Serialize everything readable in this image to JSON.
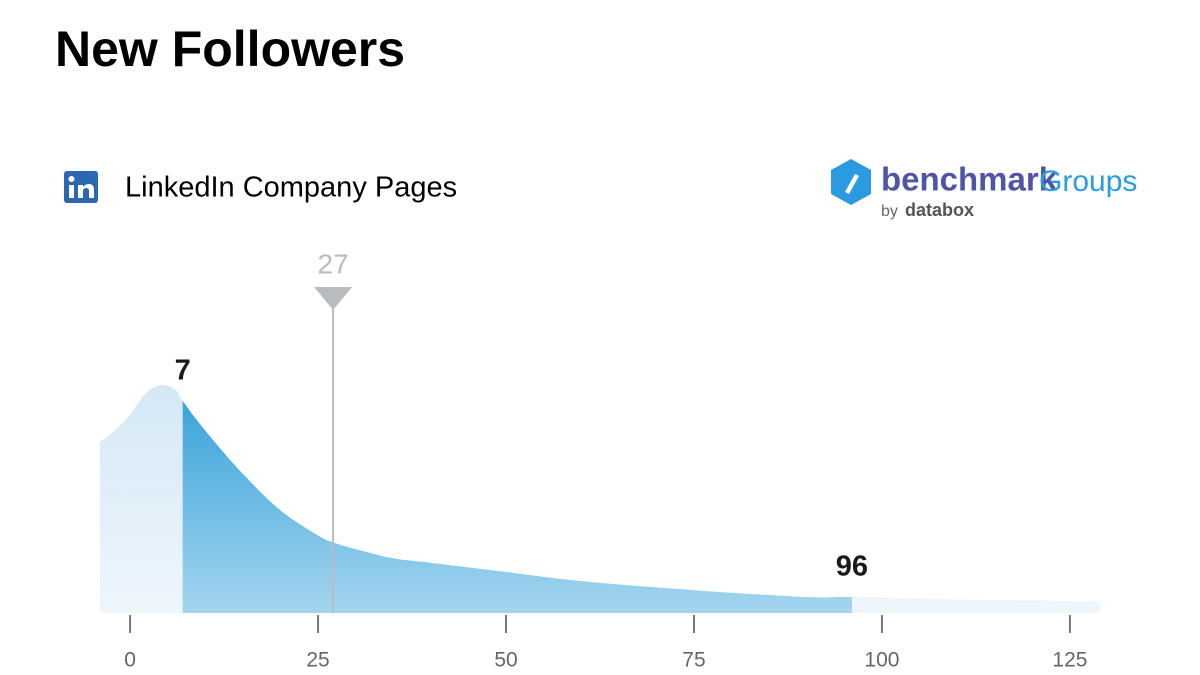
{
  "chart_data": {
    "type": "density",
    "title": "New Followers",
    "subtitle": "LinkedIn Company Pages",
    "brand": {
      "name": "benchmark",
      "suffix": "Groups",
      "by": "by",
      "company": "databox"
    },
    "x": [
      -4,
      -2,
      0,
      2,
      4,
      6,
      7,
      10,
      15,
      20,
      25,
      27,
      30,
      35,
      40,
      50,
      60,
      75,
      90,
      96,
      110,
      129
    ],
    "values": [
      75,
      80,
      87,
      96,
      100,
      98,
      93,
      80,
      61,
      45,
      34,
      31,
      28,
      24,
      22,
      18,
      14,
      10,
      7,
      7,
      6,
      5
    ],
    "range": {
      "low": 7,
      "high": 96
    },
    "median": 27,
    "xlim": [
      -4,
      129
    ],
    "ylim": [
      0,
      100
    ],
    "xticks": [
      0,
      25,
      50,
      75,
      100,
      125
    ],
    "colors": {
      "area": "#dcebf7",
      "highlight_top": "#2a9bd6",
      "highlight_bottom": "#a4d5ef",
      "median": "#b9bcbf"
    }
  }
}
